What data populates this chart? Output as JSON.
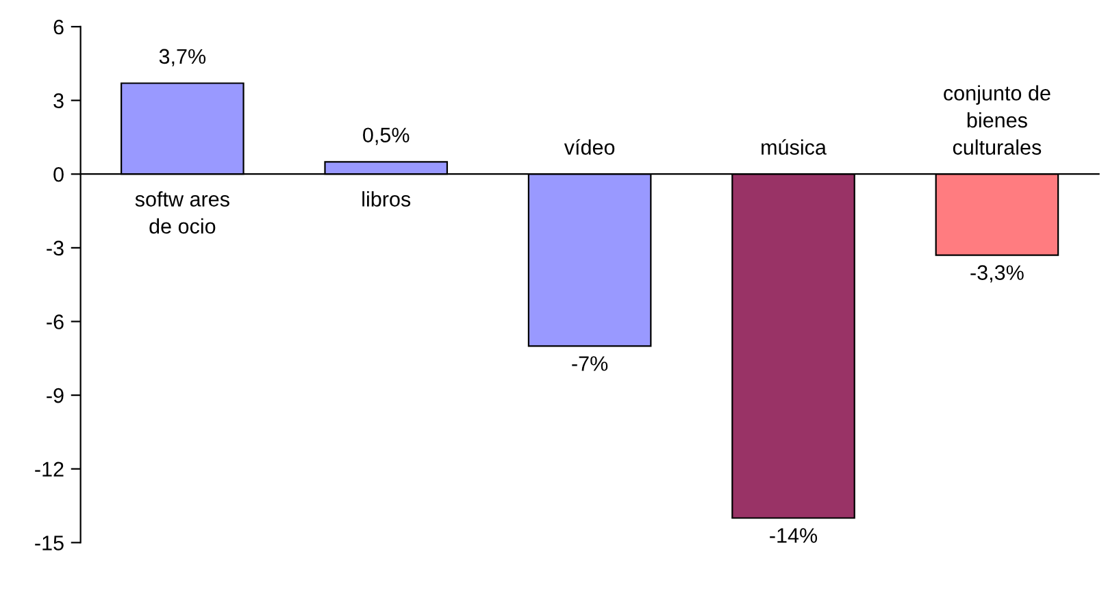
{
  "chart_data": {
    "type": "bar",
    "categories": [
      "softw ares\nde ocio",
      "libros",
      "vídeo",
      "música",
      "conjunto de\nbienes\nculturales"
    ],
    "values": [
      3.7,
      0.5,
      -7,
      -14,
      -3.3
    ],
    "colors": [
      "#9999ff",
      "#9999ff",
      "#9999ff",
      "#993366",
      "#ff7c80"
    ],
    "value_labels": [
      "3,7%",
      "0,5%",
      "-7%",
      "-14%",
      "-3,3%"
    ],
    "ylim": [
      -15,
      6
    ],
    "yticks": [
      -15,
      -12,
      -9,
      -6,
      -3,
      0,
      3,
      6
    ],
    "grid": false,
    "legend": false
  }
}
